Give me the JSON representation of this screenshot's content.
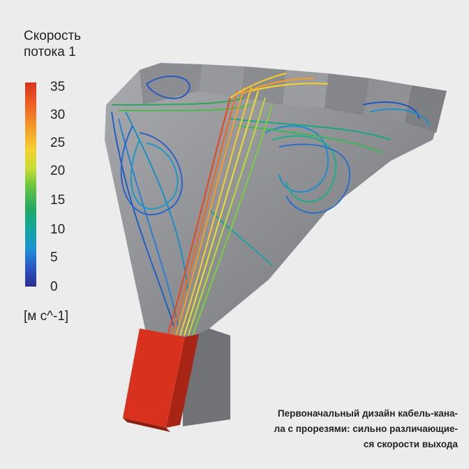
{
  "legend": {
    "title_line1": "Скорость",
    "title_line2": "потока 1",
    "ticks": [
      "35",
      "30",
      "25",
      "20",
      "15",
      "10",
      "5",
      "0"
    ],
    "unit": "[м с^-1]"
  },
  "caption": {
    "line1": "Первоначальный дизайн кабель-кана-",
    "line2": "ла с прорезями: сильно различающие-",
    "line3": "ся скорости выхода"
  },
  "colors": {
    "background": "#ececec",
    "duct_gray": "#7c7e82",
    "high_velocity": "#d8321e",
    "low_velocity": "#2a2c8f"
  }
}
